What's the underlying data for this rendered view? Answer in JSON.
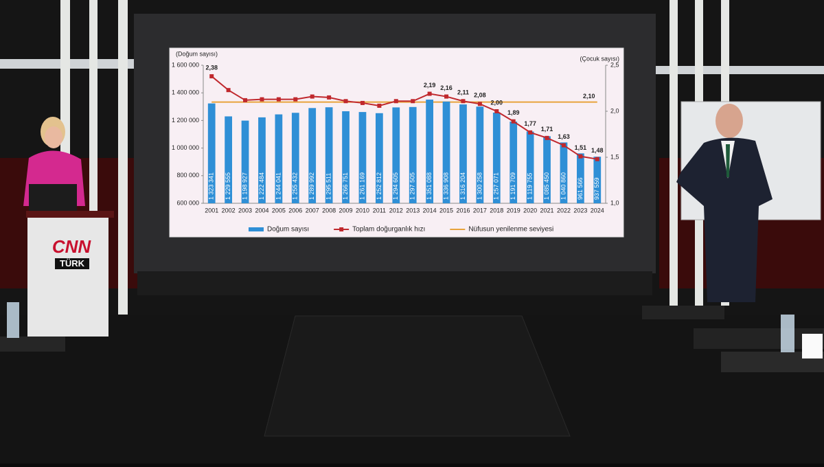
{
  "chart_data": {
    "type": "bar_line",
    "y_axis_title": "(Doğum sayısı)",
    "y2_axis_title": "(Çocuk sayısı)",
    "categories": [
      "2001",
      "2002",
      "2003",
      "2004",
      "2005",
      "2006",
      "2007",
      "2008",
      "2009",
      "2010",
      "2011",
      "2012",
      "2013",
      "2014",
      "2015",
      "2016",
      "2017",
      "2018",
      "2019",
      "2020",
      "2021",
      "2022",
      "2023",
      "2024"
    ],
    "series": [
      {
        "name": "Doğum sayısı",
        "type": "bar",
        "color": "#2f8fd6",
        "values": [
          1323341,
          1229555,
          1198927,
          1222484,
          1244041,
          1255432,
          1289992,
          1295511,
          1266751,
          1261169,
          1252812,
          1294605,
          1297505,
          1351088,
          1336908,
          1316204,
          1300258,
          1257071,
          1191709,
          1119755,
          1085450,
          1040860,
          961566,
          937559
        ],
        "value_labels": [
          "1 323 341",
          "1 229 555",
          "1 198 927",
          "1 222 484",
          "1 244 041",
          "1 255 432",
          "1 289 992",
          "1 295 511",
          "1 266 751",
          "1 261 169",
          "1 252 812",
          "1 294 605",
          "1 297 505",
          "1 351 088",
          "1 336 908",
          "1 316 204",
          "1 300 258",
          "1 257 071",
          "1 191 709",
          "1 119 755",
          "1 085 450",
          "1 040 860",
          "961 566",
          "937 559"
        ]
      },
      {
        "name": "Toplam doğurganlık hızı",
        "type": "line",
        "axis": "y2",
        "color": "#c0282d",
        "values": [
          2.38,
          2.23,
          2.12,
          2.13,
          2.13,
          2.13,
          2.16,
          2.15,
          2.11,
          2.09,
          2.06,
          2.11,
          2.11,
          2.19,
          2.16,
          2.11,
          2.08,
          2.0,
          1.89,
          1.77,
          1.71,
          1.63,
          1.51,
          1.48
        ],
        "value_labels": [
          "2,38",
          null,
          null,
          null,
          null,
          null,
          null,
          null,
          null,
          null,
          null,
          null,
          null,
          "2,19",
          "2,16",
          "2,11",
          "2,08",
          "2,00",
          "1,89",
          "1,77",
          "1,71",
          "1,63",
          "1,51",
          "1,48"
        ]
      }
    ],
    "reference_line": {
      "name": "Nüfusun yenilenme seviyesi",
      "axis": "y2",
      "value": 2.1,
      "label": "2,10",
      "color": "#e8a33b"
    },
    "ylim": [
      600000,
      1600000
    ],
    "yticks": [
      {
        "value": 600000,
        "label": "600 000"
      },
      {
        "value": 800000,
        "label": "800 000"
      },
      {
        "value": 1000000,
        "label": "1 000 000"
      },
      {
        "value": 1200000,
        "label": "1 200 000"
      },
      {
        "value": 1400000,
        "label": "1 400 000"
      },
      {
        "value": 1600000,
        "label": "1 600 000"
      }
    ],
    "y2lim": [
      1.0,
      2.5
    ],
    "y2ticks": [
      {
        "value": 1.0,
        "label": "1,0"
      },
      {
        "value": 1.5,
        "label": "1,5"
      },
      {
        "value": 2.0,
        "label": "2,0"
      },
      {
        "value": 2.5,
        "label": "2,5"
      }
    ],
    "grid": false
  },
  "studio": {
    "logo_top": "CNN",
    "logo_bottom": "TÜRK"
  }
}
